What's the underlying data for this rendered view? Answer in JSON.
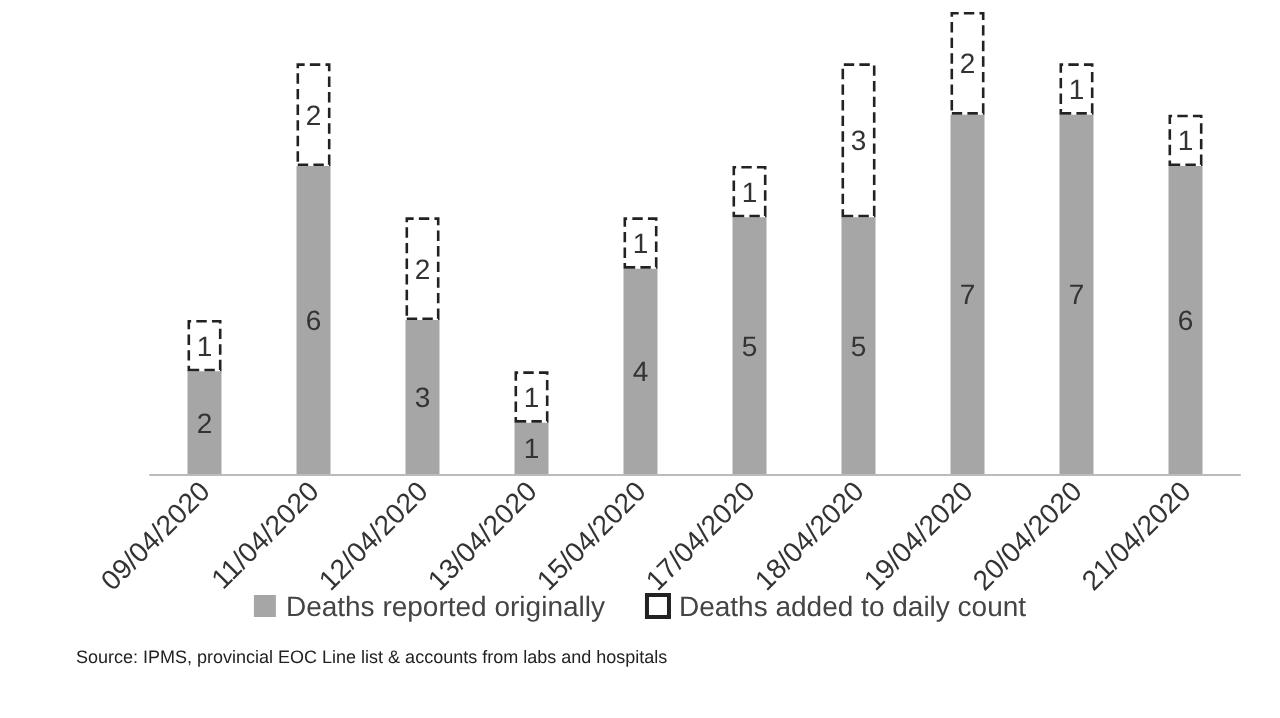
{
  "chart_data": {
    "type": "bar",
    "stacked": true,
    "data_labels": true,
    "legend": "bottom",
    "categories": [
      "09/04/2020",
      "11/04/2020",
      "12/04/2020",
      "13/04/2020",
      "15/04/2020",
      "17/04/2020",
      "18/04/2020",
      "19/04/2020",
      "20/04/2020",
      "21/04/2020"
    ],
    "series": [
      {
        "name": "Deaths reported originally",
        "color": "#a6a6a6",
        "values": [
          2,
          6,
          3,
          1,
          4,
          5,
          5,
          7,
          7,
          6
        ]
      },
      {
        "name": "Deaths added to daily count",
        "color": "#ffffff",
        "line_style": "dashed",
        "values": [
          1,
          2,
          2,
          1,
          1,
          1,
          3,
          2,
          1,
          1
        ]
      }
    ],
    "annotations": [
      "Source: IPMS, provincial EOC Line list & accounts from labs and hospitals"
    ]
  }
}
